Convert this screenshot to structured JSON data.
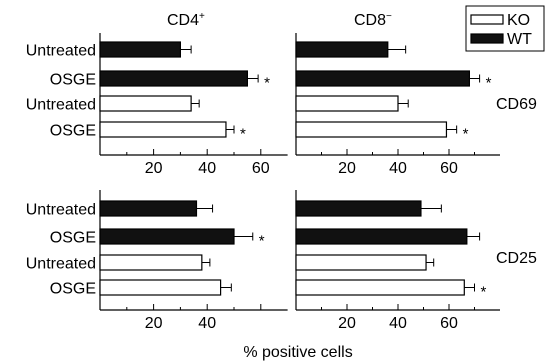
{
  "chart_data": [
    {
      "type": "bar",
      "panel": "CD4+ / CD69",
      "column_title": "CD4",
      "column_title_sup": "+",
      "categories": [
        "Untreated",
        "OSGE",
        "Untreated",
        "OSGE"
      ],
      "genotypes": [
        "WT",
        "WT",
        "KO",
        "KO"
      ],
      "values": [
        30,
        55,
        34,
        47
      ],
      "errors": [
        4,
        4,
        3,
        3
      ],
      "significant": [
        false,
        true,
        false,
        true
      ],
      "xlim": [
        0,
        70
      ],
      "xticks": [
        "20",
        "40",
        "60"
      ]
    },
    {
      "type": "bar",
      "panel": "CD8− / CD69",
      "column_title": "CD8",
      "column_title_sup": "−",
      "row_label": "CD69",
      "categories": [
        "Untreated",
        "OSGE",
        "Untreated",
        "OSGE"
      ],
      "genotypes": [
        "WT",
        "WT",
        "KO",
        "KO"
      ],
      "values": [
        36,
        68,
        40,
        59
      ],
      "errors": [
        7,
        4,
        4,
        4
      ],
      "significant": [
        false,
        true,
        false,
        true
      ],
      "xlim": [
        0,
        80
      ],
      "xticks": [
        "20",
        "40",
        "60"
      ]
    },
    {
      "type": "bar",
      "panel": "CD4+ / CD25",
      "categories": [
        "Untreated",
        "OSGE",
        "Untreated",
        "OSGE"
      ],
      "genotypes": [
        "WT",
        "WT",
        "KO",
        "KO"
      ],
      "values": [
        36,
        50,
        38,
        45
      ],
      "errors": [
        6,
        7,
        3,
        4
      ],
      "significant": [
        false,
        true,
        false,
        false
      ],
      "xlim": [
        0,
        70
      ],
      "xticks": [
        "20",
        "40"
      ]
    },
    {
      "type": "bar",
      "panel": "CD8− / CD25",
      "row_label": "CD25",
      "categories": [
        "Untreated",
        "OSGE",
        "Untreated",
        "OSGE"
      ],
      "genotypes": [
        "WT",
        "WT",
        "KO",
        "KO"
      ],
      "values": [
        49,
        67,
        51,
        66
      ],
      "errors": [
        8,
        5,
        3,
        4
      ],
      "significant": [
        false,
        false,
        false,
        true
      ],
      "xlim": [
        0,
        80
      ],
      "xticks": [
        "20",
        "40",
        "60"
      ]
    }
  ],
  "legend": [
    {
      "name": "KO",
      "fill": "#ffffff"
    },
    {
      "name": "WT",
      "fill": "#111111"
    }
  ],
  "xlabel": "% positive cells",
  "significance_marker": "*",
  "colors": {
    "wt_bar": "#111111",
    "ko_bar": "#ffffff",
    "stroke": "#000000"
  }
}
